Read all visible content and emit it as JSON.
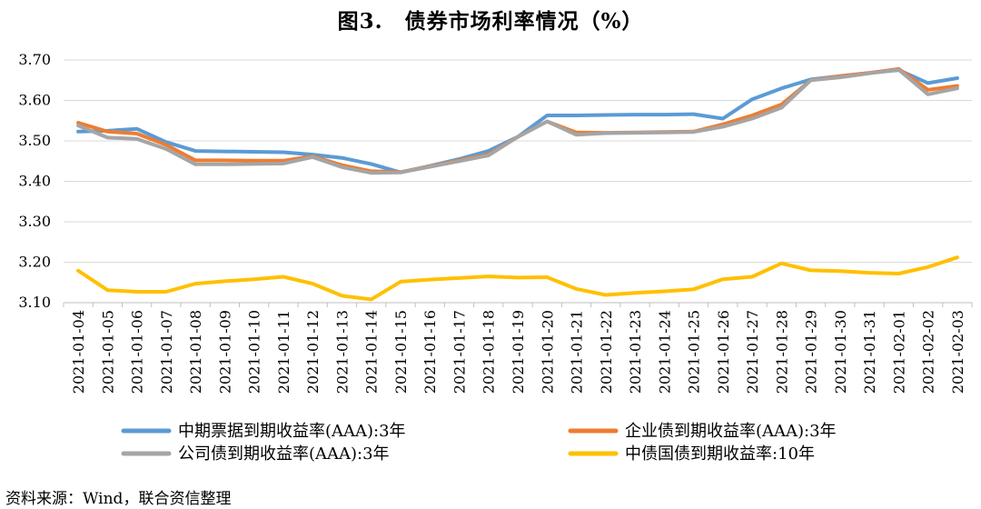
{
  "title": "图3.　债券市场利率情况（%）",
  "source": "资料来源：Wind，联合资信整理",
  "chart_data": {
    "type": "line",
    "title": "图3.　债券市场利率情况（%）",
    "xlabel": "",
    "ylabel": "",
    "ylim": [
      3.1,
      3.7
    ],
    "y_ticks": [
      "3.10",
      "3.20",
      "3.30",
      "3.40",
      "3.50",
      "3.60",
      "3.70"
    ],
    "grid": "horizontal",
    "legend_position": "bottom",
    "x": [
      "2021-01-04",
      "2021-01-05",
      "2021-01-06",
      "2021-01-07",
      "2021-01-08",
      "2021-01-09",
      "2021-01-10",
      "2021-01-11",
      "2021-01-12",
      "2021-01-13",
      "2021-01-14",
      "2021-01-15",
      "2021-01-16",
      "2021-01-17",
      "2021-01-18",
      "2021-01-19",
      "2021-01-20",
      "2021-01-21",
      "2021-01-22",
      "2021-01-23",
      "2021-01-24",
      "2021-01-25",
      "2021-01-26",
      "2021-01-27",
      "2021-01-28",
      "2021-01-29",
      "2021-01-30",
      "2021-01-31",
      "2021-02-01",
      "2021-02-02",
      "2021-02-03"
    ],
    "series": [
      {
        "name": "中期票据到期收益率(AAA):3年",
        "color": "#5B9BD5",
        "values": [
          3.523,
          3.525,
          3.53,
          3.497,
          3.475,
          3.474,
          3.473,
          3.472,
          3.466,
          3.458,
          3.443,
          3.422,
          3.438,
          3.455,
          3.475,
          3.51,
          3.563,
          3.563,
          3.564,
          3.565,
          3.565,
          3.566,
          3.555,
          3.603,
          3.63,
          3.652,
          3.66,
          3.668,
          3.675,
          3.643,
          3.655
        ]
      },
      {
        "name": "企业债到期收益率(AAA):3年",
        "color": "#ED7D31",
        "values": [
          3.545,
          3.523,
          3.518,
          3.49,
          3.452,
          3.452,
          3.451,
          3.451,
          3.462,
          3.44,
          3.425,
          3.423,
          3.437,
          3.452,
          3.467,
          3.51,
          3.548,
          3.521,
          3.52,
          3.521,
          3.522,
          3.523,
          3.541,
          3.563,
          3.59,
          3.65,
          3.66,
          3.668,
          3.678,
          3.626,
          3.636
        ]
      },
      {
        "name": "公司债到期收益率(AAA):3年",
        "color": "#A5A5A5",
        "values": [
          3.538,
          3.508,
          3.505,
          3.48,
          3.442,
          3.442,
          3.443,
          3.444,
          3.46,
          3.435,
          3.421,
          3.422,
          3.436,
          3.45,
          3.464,
          3.51,
          3.548,
          3.515,
          3.519,
          3.52,
          3.521,
          3.522,
          3.535,
          3.555,
          3.582,
          3.65,
          3.657,
          3.667,
          3.676,
          3.615,
          3.63
        ]
      },
      {
        "name": "中债国债到期收益率:10年",
        "color": "#FFC000",
        "values": [
          3.179,
          3.131,
          3.127,
          3.127,
          3.147,
          3.153,
          3.158,
          3.164,
          3.147,
          3.117,
          3.108,
          3.152,
          3.157,
          3.161,
          3.165,
          3.162,
          3.163,
          3.134,
          3.119,
          3.124,
          3.128,
          3.133,
          3.158,
          3.164,
          3.197,
          3.18,
          3.178,
          3.174,
          3.172,
          3.188,
          3.212
        ]
      }
    ]
  }
}
